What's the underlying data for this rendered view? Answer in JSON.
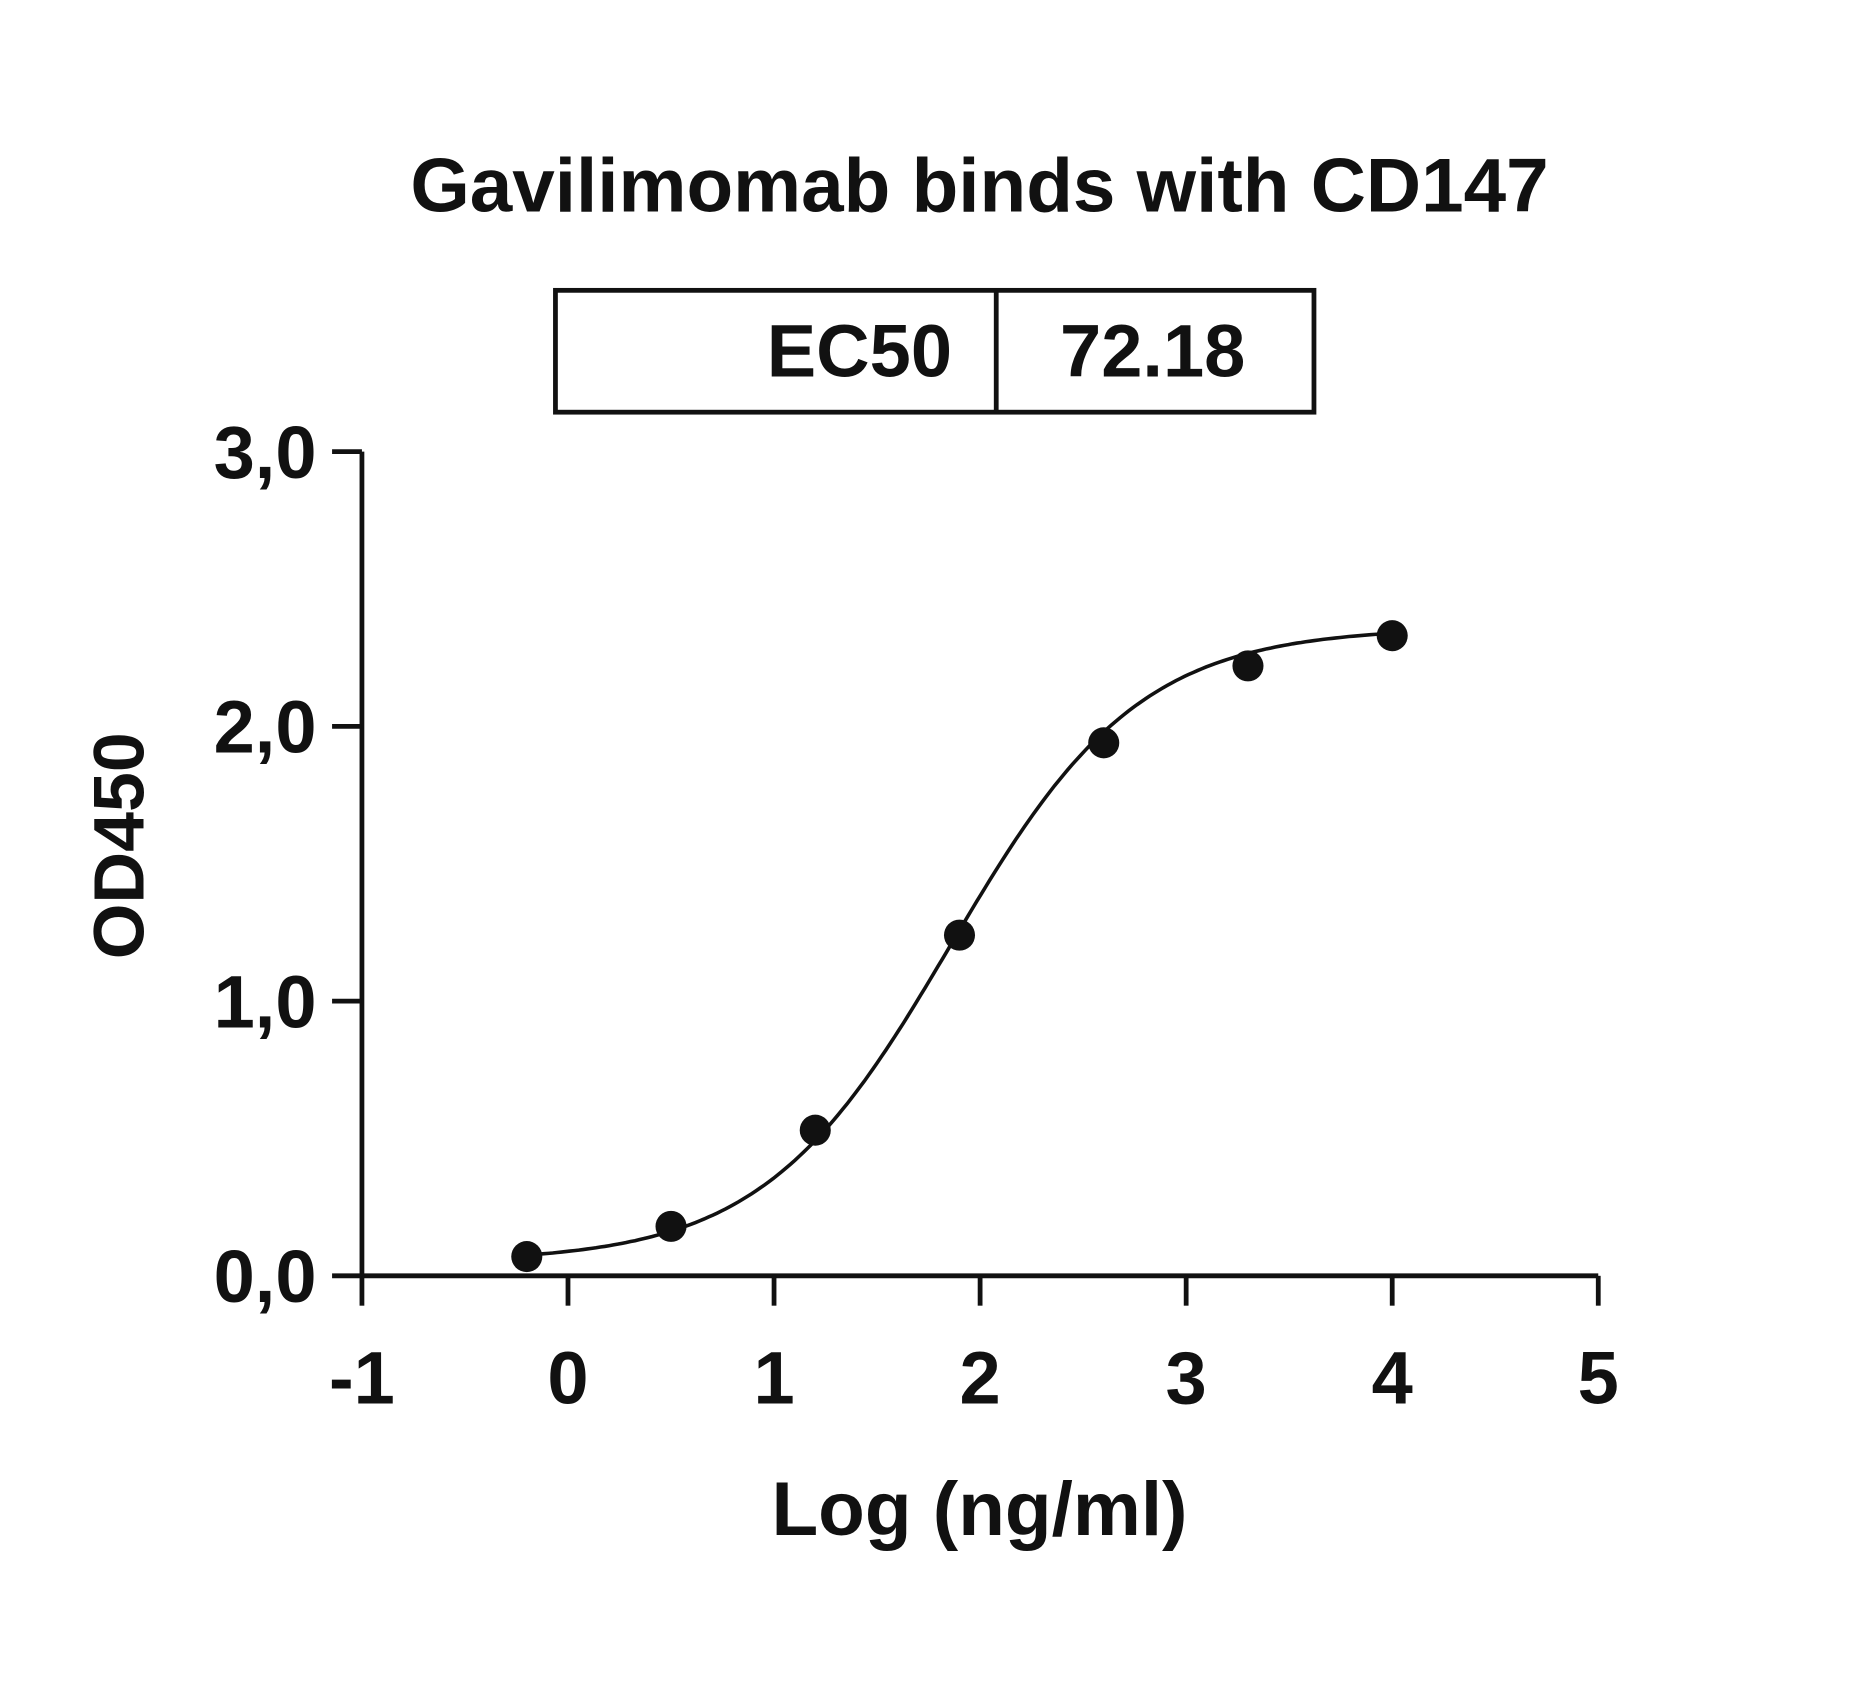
{
  "chart_data": {
    "type": "scatter",
    "title": "Gavilimomab binds with CD147",
    "xlabel": "Log (ng/ml)",
    "ylabel": "OD450",
    "xlim": [
      -1,
      5
    ],
    "ylim": [
      0,
      3
    ],
    "x_ticks": [
      "-1",
      "0",
      "1",
      "2",
      "3",
      "4",
      "5"
    ],
    "y_ticks": [
      "0,0",
      "1,0",
      "2,0",
      "3,0"
    ],
    "grid": false,
    "ec50_table": {
      "label": "EC50",
      "value": "72.18"
    },
    "series": [
      {
        "x": [
          -0.2,
          0.5,
          1.2,
          1.9,
          2.6,
          3.3,
          4.0
        ],
        "y": [
          0.07,
          0.18,
          0.53,
          1.24,
          1.94,
          2.22,
          2.33
        ]
      }
    ],
    "fit": {
      "model": "4PL",
      "bottom": 0.05,
      "top": 2.36,
      "log_ec50": 1.858,
      "hill": 0.95
    },
    "colors": {
      "ink": "#111111",
      "background": "#ffffff"
    }
  }
}
